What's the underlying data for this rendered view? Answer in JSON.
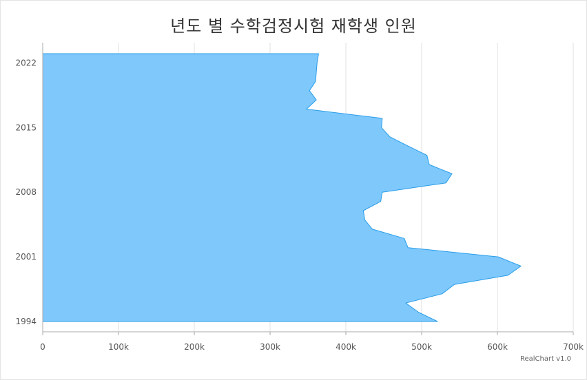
{
  "chart_data": {
    "type": "area",
    "orientation": "horizontal",
    "title": "년도 별 수학검정시험 재학생 인원",
    "credit": "RealChart v1.0",
    "x": [
      1994,
      1995,
      1996,
      1997,
      1998,
      1999,
      2000,
      2001,
      2002,
      2003,
      2004,
      2005,
      2006,
      2007,
      2008,
      2009,
      2010,
      2011,
      2012,
      2013,
      2014,
      2015,
      2016,
      2017,
      2018,
      2019,
      2020,
      2021,
      2022,
      2023
    ],
    "values": [
      521000,
      496000,
      479000,
      527000,
      543000,
      614000,
      631000,
      601000,
      482000,
      477000,
      435000,
      425000,
      423000,
      446000,
      448000,
      532000,
      540000,
      510000,
      507000,
      482000,
      458000,
      447000,
      448000,
      348000,
      361000,
      352000,
      360000,
      361000,
      362000,
      364000
    ],
    "xlim": [
      1994,
      2023
    ],
    "ylim": [
      0,
      700000
    ],
    "x_ticks": [
      "1994",
      "2001",
      "2008",
      "2015",
      "2022"
    ],
    "x_tick_values": [
      1994,
      2001,
      2008,
      2015,
      2022
    ],
    "y_ticks": [
      "0",
      "100k",
      "200k",
      "300k",
      "400k",
      "500k",
      "600k",
      "700k"
    ],
    "y_tick_values": [
      0,
      100000,
      200000,
      300000,
      400000,
      500000,
      600000,
      700000
    ],
    "grid": true,
    "colors": {
      "fill": "#7ec8fc",
      "stroke": "#2a9de8",
      "grid": "#e2e2e2",
      "axis": "#aaaaaa"
    }
  }
}
